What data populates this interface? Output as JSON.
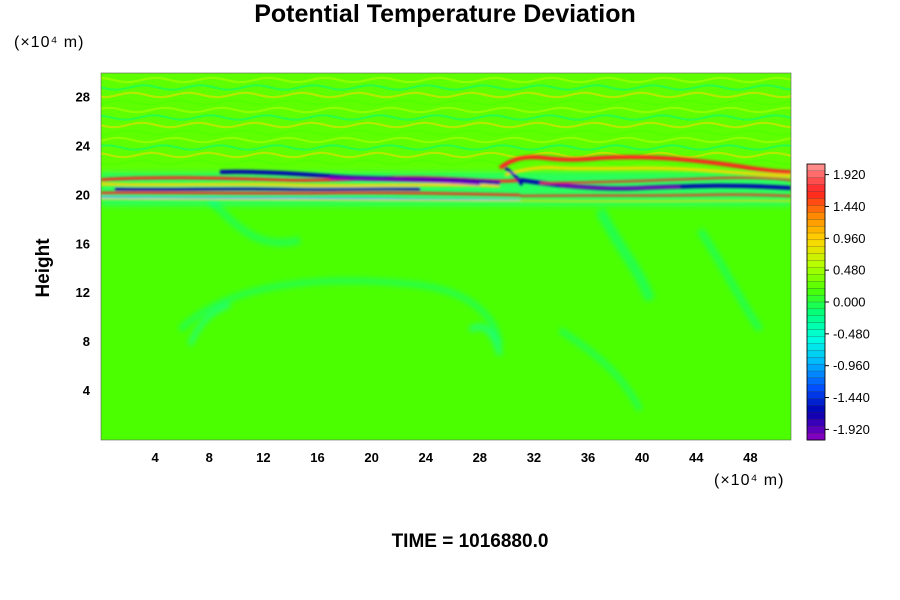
{
  "chart_data": {
    "type": "heatmap",
    "title": "Potential Temperature Deviation",
    "ylabel": "Height",
    "x_unit_label": "(×10⁴ m)",
    "y_unit_label": "(×10⁴ m)",
    "footer": "TIME = 1016880.0",
    "xlim": [
      0,
      51
    ],
    "ylim": [
      0,
      30
    ],
    "x_ticks": [
      4,
      8,
      12,
      16,
      20,
      24,
      28,
      32,
      36,
      40,
      44,
      48
    ],
    "x_tick_labels": [
      "4",
      "8",
      "12",
      "16",
      "20",
      "24",
      "28",
      "32",
      "36",
      "40",
      "44",
      "48"
    ],
    "y_ticks": [
      4,
      8,
      12,
      16,
      20,
      24,
      28
    ],
    "y_tick_labels": [
      "4",
      "8",
      "12",
      "16",
      "20",
      "24",
      "28"
    ],
    "colorbar": {
      "min": -2.08,
      "max": 2.08,
      "tick_values": [
        1.92,
        1.44,
        0.96,
        0.48,
        0.0,
        -0.48,
        -0.96,
        -1.44,
        -1.92
      ],
      "tick_labels": [
        "1.920",
        "1.440",
        "0.960",
        "0.480",
        "0.000",
        "-0.480",
        "-0.960",
        "-1.440",
        "-1.920"
      ],
      "colors": [
        "#ff8a8a",
        "#ff2020",
        "#ff8c00",
        "#ffd700",
        "#b4ff00",
        "#4cff00",
        "#00ff80",
        "#00ffe0",
        "#00b4ff",
        "#0050ff",
        "#0000b0",
        "#8000c0"
      ]
    },
    "field_description_values": {
      "background": 0.1,
      "mid_level_band_height": 20.5
    }
  }
}
